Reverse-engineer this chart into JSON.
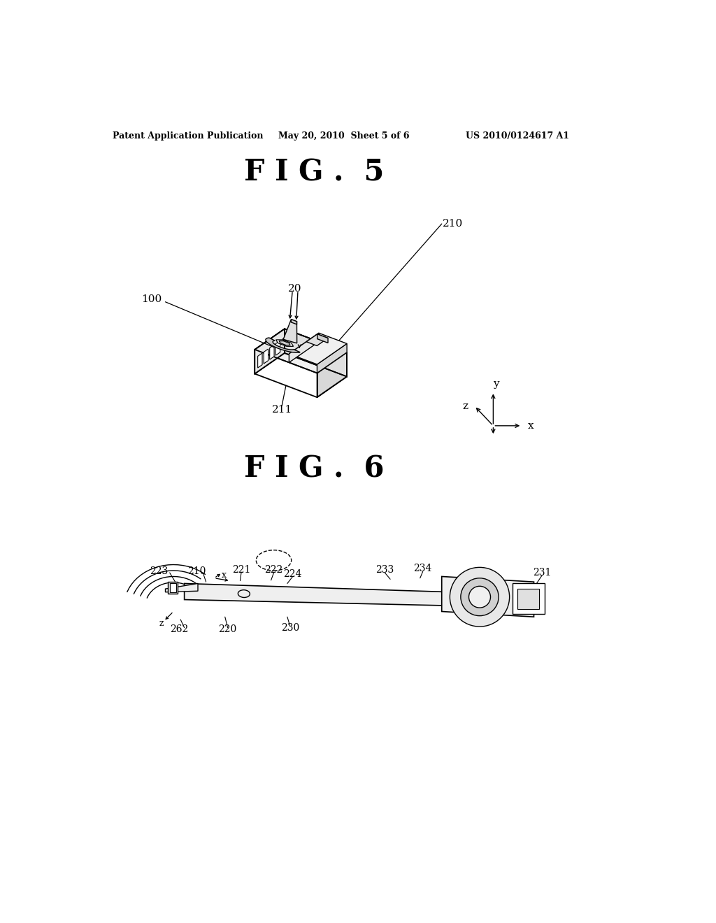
{
  "bg_color": "#ffffff",
  "text_color": "#000000",
  "header_left": "Patent Application Publication",
  "header_center": "May 20, 2010  Sheet 5 of 6",
  "header_right": "US 2010/0124617 A1",
  "fig5_title": "F I G .  5",
  "fig6_title": "F I G .  6",
  "line_color": "#000000",
  "face_light": "#f8f8f8",
  "face_mid": "#e8e8e8",
  "face_dark": "#d8d8d8"
}
